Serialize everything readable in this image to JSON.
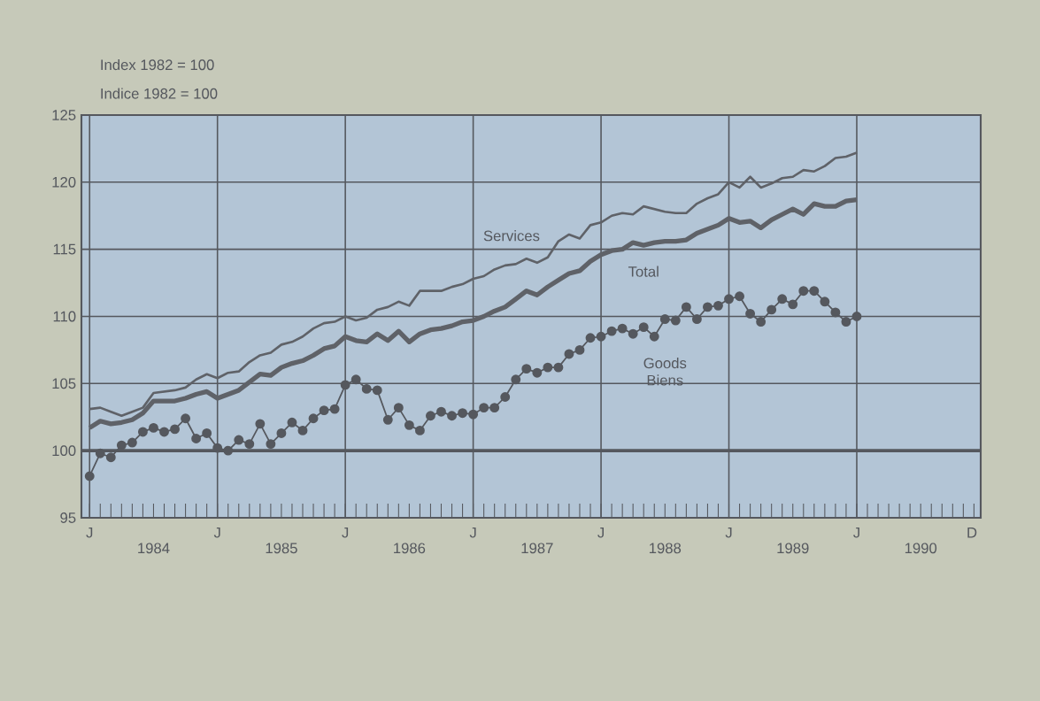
{
  "chart_data": {
    "type": "line",
    "ylabel": "Index 1982 = 100",
    "annotations": [
      "Indice 1982 = 100",
      {
        "text": "J",
        "x": "1984-01"
      },
      {
        "text": "J",
        "x": "1985-01"
      },
      {
        "text": "J",
        "x": "1986-01"
      },
      {
        "text": "J",
        "x": "1987-01"
      },
      {
        "text": "J",
        "x": "1988-01"
      },
      {
        "text": "J",
        "x": "1989-01"
      },
      {
        "text": "J",
        "x": "1990-01"
      },
      "D"
    ],
    "x": [
      "1984-01",
      "1984-02",
      "1984-03",
      "1984-04",
      "1984-05",
      "1984-06",
      "1984-07",
      "1984-08",
      "1984-09",
      "1984-10",
      "1984-11",
      "1984-12",
      "1985-01",
      "1985-02",
      "1985-03",
      "1985-04",
      "1985-05",
      "1985-06",
      "1985-07",
      "1985-08",
      "1985-09",
      "1985-10",
      "1985-11",
      "1985-12",
      "1986-01",
      "1986-02",
      "1986-03",
      "1986-04",
      "1986-05",
      "1986-06",
      "1986-07",
      "1986-08",
      "1986-09",
      "1986-10",
      "1986-11",
      "1986-12",
      "1987-01",
      "1987-02",
      "1987-03",
      "1987-04",
      "1987-05",
      "1987-06",
      "1987-07",
      "1987-08",
      "1987-09",
      "1987-10",
      "1987-11",
      "1987-12",
      "1988-01",
      "1988-02",
      "1988-03",
      "1988-04",
      "1988-05",
      "1988-06",
      "1988-07",
      "1988-08",
      "1988-09",
      "1988-10",
      "1988-11",
      "1988-12",
      "1989-01",
      "1989-02",
      "1989-03",
      "1989-04",
      "1989-05",
      "1989-06",
      "1989-07",
      "1989-08",
      "1989-09",
      "1989-10",
      "1989-11",
      "1989-12",
      "1990-01"
    ],
    "series": [
      {
        "name": "Services",
        "color": "#5f6268",
        "marker": "none",
        "values": [
          103.1,
          103.2,
          102.9,
          102.6,
          102.9,
          103.2,
          104.3,
          104.4,
          104.5,
          104.7,
          105.3,
          105.7,
          105.4,
          105.8,
          105.9,
          106.6,
          107.1,
          107.3,
          107.9,
          108.1,
          108.5,
          109.1,
          109.5,
          109.6,
          110.0,
          109.7,
          109.9,
          110.5,
          110.7,
          111.1,
          110.8,
          111.9,
          111.9,
          111.9,
          112.2,
          112.4,
          112.8,
          113.0,
          113.5,
          113.8,
          113.9,
          114.3,
          114.0,
          114.4,
          115.6,
          116.1,
          115.8,
          116.8,
          117.0,
          117.5,
          117.7,
          117.6,
          118.2,
          118.0,
          117.8,
          117.7,
          117.7,
          118.4,
          118.8,
          119.1,
          120.0,
          119.6,
          120.4,
          119.6,
          119.9,
          120.3,
          120.4,
          120.9,
          120.8,
          121.2,
          121.8,
          121.9,
          122.2
        ]
      },
      {
        "name": "Total",
        "color": "#5f6268",
        "marker": "none",
        "values": [
          101.7,
          102.2,
          102.0,
          102.1,
          102.3,
          102.8,
          103.7,
          103.7,
          103.7,
          103.9,
          104.2,
          104.4,
          103.9,
          104.2,
          104.5,
          105.1,
          105.7,
          105.6,
          106.2,
          106.5,
          106.7,
          107.1,
          107.6,
          107.8,
          108.5,
          108.2,
          108.1,
          108.7,
          108.2,
          108.9,
          108.1,
          108.7,
          109.0,
          109.1,
          109.3,
          109.6,
          109.7,
          110.0,
          110.4,
          110.7,
          111.3,
          111.9,
          111.6,
          112.2,
          112.7,
          113.2,
          113.4,
          114.1,
          114.6,
          114.9,
          115.0,
          115.5,
          115.3,
          115.5,
          115.6,
          115.6,
          115.7,
          116.2,
          116.5,
          116.8,
          117.3,
          117.0,
          117.1,
          116.6,
          117.2,
          117.6,
          118.0,
          117.6,
          118.4,
          118.2,
          118.2,
          118.6,
          118.7
        ]
      },
      {
        "name": "Goods Biens",
        "color": "#55585e",
        "marker": "circle",
        "values": [
          98.1,
          99.8,
          99.5,
          100.4,
          100.6,
          101.4,
          101.7,
          101.4,
          101.6,
          102.4,
          100.9,
          101.3,
          100.2,
          100.0,
          100.8,
          100.5,
          102.0,
          100.5,
          101.3,
          102.1,
          101.5,
          102.4,
          103.0,
          103.1,
          104.9,
          105.3,
          104.6,
          104.5,
          102.3,
          103.2,
          101.9,
          101.5,
          102.6,
          102.9,
          102.6,
          102.8,
          102.7,
          103.2,
          103.2,
          104.0,
          105.3,
          106.1,
          105.8,
          106.2,
          106.2,
          107.2,
          107.5,
          108.4,
          108.5,
          108.9,
          109.1,
          108.7,
          109.2,
          108.5,
          109.8,
          109.7,
          110.7,
          109.8,
          110.7,
          110.8,
          111.3,
          111.5,
          110.2,
          109.6,
          110.5,
          111.3,
          110.9,
          111.9,
          111.9,
          111.1,
          110.3,
          109.6,
          110.0
        ]
      }
    ],
    "xlim": [
      "1983-12-08",
      "1990-12-20"
    ],
    "xticks": [
      {
        "value": "1984-07",
        "label": "1984"
      },
      {
        "value": "1985-07",
        "label": "1985"
      },
      {
        "value": "1986-07",
        "label": "1986"
      },
      {
        "value": "1987-07",
        "label": "1987"
      },
      {
        "value": "1988-07",
        "label": "1988"
      },
      {
        "value": "1989-07",
        "label": "1989"
      },
      {
        "value": "1990-07",
        "label": "1990"
      }
    ],
    "ylim": [
      95,
      125
    ],
    "yticks": [
      95,
      100,
      105,
      110,
      115,
      120,
      125
    ],
    "grid": true,
    "line_style": "solid",
    "ref_lines": [
      {
        "axis": "y",
        "value": 100,
        "color": "#55585e"
      }
    ]
  }
}
